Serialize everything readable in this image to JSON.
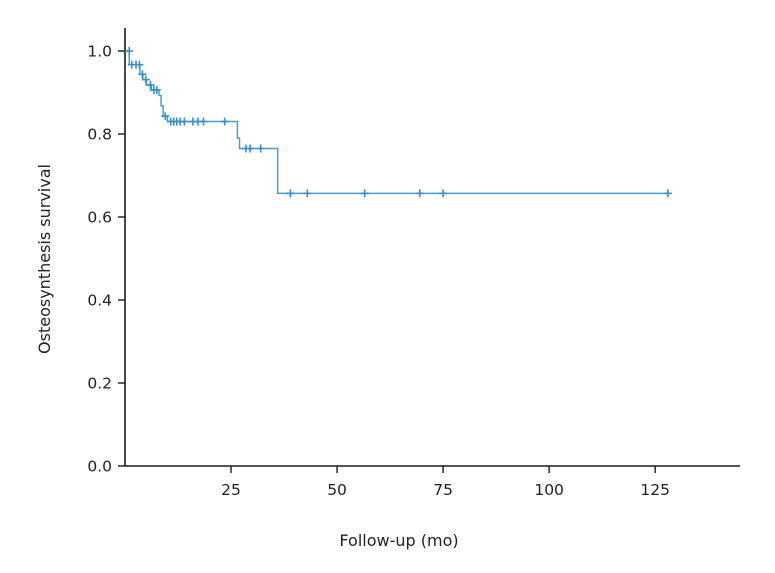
{
  "chart_data": {
    "type": "line",
    "subtype": "kaplan-meier",
    "title": "",
    "xlabel": "Follow-up (mo)",
    "ylabel": "Osteosynthesis survival",
    "xlim": [
      0,
      145
    ],
    "ylim": [
      0,
      1.0
    ],
    "x_ticks": [
      25,
      50,
      75,
      100,
      125
    ],
    "x_tick_labels": [
      "25",
      "50",
      "75",
      "100",
      "125"
    ],
    "y_ticks": [
      0,
      0.2,
      0.4,
      0.6,
      0.8,
      1.0
    ],
    "y_tick_labels": [
      "0.0",
      "0.2",
      "0.4",
      "0.6",
      "0.8",
      "1.0"
    ],
    "grid": false,
    "legend": "none",
    "line_color": "#4d9ec7",
    "marker_color": "#3a8fc8",
    "series": [
      {
        "steps": [
          {
            "x": 0,
            "y": 1.0
          },
          {
            "x": 1,
            "y": 0.967
          },
          {
            "x": 3.5,
            "y": 0.944
          },
          {
            "x": 4.2,
            "y": 0.931
          },
          {
            "x": 5,
            "y": 0.918
          },
          {
            "x": 6.2,
            "y": 0.906
          },
          {
            "x": 8,
            "y": 0.893
          },
          {
            "x": 8.5,
            "y": 0.868
          },
          {
            "x": 9,
            "y": 0.843
          },
          {
            "x": 10,
            "y": 0.83
          },
          {
            "x": 26.5,
            "y": 0.79
          },
          {
            "x": 27,
            "y": 0.765
          },
          {
            "x": 36,
            "y": 0.657
          }
        ],
        "end_x": 128,
        "censored": [
          {
            "x": 1,
            "y": 1.0
          },
          {
            "x": 1.6,
            "y": 0.967
          },
          {
            "x": 2.6,
            "y": 0.967
          },
          {
            "x": 3.4,
            "y": 0.967
          },
          {
            "x": 4.1,
            "y": 0.944
          },
          {
            "x": 4.9,
            "y": 0.931
          },
          {
            "x": 6.0,
            "y": 0.918
          },
          {
            "x": 6.8,
            "y": 0.906
          },
          {
            "x": 7.5,
            "y": 0.906
          },
          {
            "x": 9.5,
            "y": 0.843
          },
          {
            "x": 10.8,
            "y": 0.83
          },
          {
            "x": 11.5,
            "y": 0.83
          },
          {
            "x": 12.2,
            "y": 0.83
          },
          {
            "x": 13.0,
            "y": 0.83
          },
          {
            "x": 14.0,
            "y": 0.83
          },
          {
            "x": 16.0,
            "y": 0.83
          },
          {
            "x": 17.2,
            "y": 0.83
          },
          {
            "x": 18.5,
            "y": 0.83
          },
          {
            "x": 23.5,
            "y": 0.83
          },
          {
            "x": 28.5,
            "y": 0.765
          },
          {
            "x": 29.5,
            "y": 0.765
          },
          {
            "x": 32.0,
            "y": 0.765
          },
          {
            "x": 39.0,
            "y": 0.657
          },
          {
            "x": 43.0,
            "y": 0.657
          },
          {
            "x": 56.5,
            "y": 0.657
          },
          {
            "x": 69.5,
            "y": 0.657
          },
          {
            "x": 75.0,
            "y": 0.657
          },
          {
            "x": 128.0,
            "y": 0.657
          }
        ]
      }
    ]
  }
}
